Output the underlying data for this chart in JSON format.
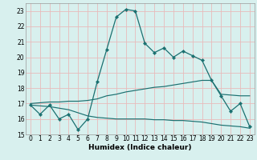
{
  "xlabel": "Humidex (Indice chaleur)",
  "x_values": [
    0,
    1,
    2,
    3,
    4,
    5,
    6,
    7,
    8,
    9,
    10,
    11,
    12,
    13,
    14,
    15,
    16,
    17,
    18,
    19,
    20,
    21,
    22,
    23
  ],
  "main_line": [
    16.9,
    16.3,
    16.9,
    16.0,
    16.3,
    15.3,
    16.0,
    18.4,
    20.5,
    22.6,
    23.1,
    23.0,
    20.9,
    20.3,
    20.6,
    20.0,
    20.4,
    20.1,
    19.8,
    18.5,
    17.5,
    16.5,
    17.0,
    15.5
  ],
  "upper_avg": [
    17.0,
    17.05,
    17.1,
    17.1,
    17.15,
    17.15,
    17.2,
    17.3,
    17.5,
    17.6,
    17.75,
    17.85,
    17.95,
    18.05,
    18.1,
    18.2,
    18.3,
    18.4,
    18.5,
    18.5,
    17.6,
    17.55,
    17.5,
    17.5
  ],
  "lower_avg": [
    16.9,
    16.85,
    16.8,
    16.7,
    16.6,
    16.4,
    16.2,
    16.1,
    16.05,
    16.0,
    16.0,
    16.0,
    16.0,
    15.95,
    15.95,
    15.9,
    15.9,
    15.85,
    15.8,
    15.7,
    15.6,
    15.55,
    15.5,
    15.4
  ],
  "color": "#1a7070",
  "bg_color": "#d8f0ee",
  "grid_color": "#e8bbbb",
  "ylim": [
    15,
    23.5
  ],
  "xlim": [
    -0.5,
    23.5
  ],
  "yticks": [
    15,
    16,
    17,
    18,
    19,
    20,
    21,
    22,
    23
  ],
  "xticks": [
    0,
    1,
    2,
    3,
    4,
    5,
    6,
    7,
    8,
    9,
    10,
    11,
    12,
    13,
    14,
    15,
    16,
    17,
    18,
    19,
    20,
    21,
    22,
    23
  ],
  "tick_fontsize": 5.5,
  "xlabel_fontsize": 6.5
}
